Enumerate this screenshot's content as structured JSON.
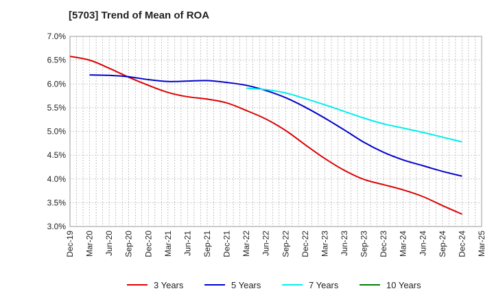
{
  "title": "[5703]  Trend of Mean of ROA",
  "chart_data": {
    "type": "line",
    "title": "[5703]  Trend of Mean of ROA",
    "xlabel": "",
    "ylabel": "",
    "ylim": [
      3.0,
      7.0
    ],
    "y_ticks": [
      3.0,
      3.5,
      4.0,
      4.5,
      5.0,
      5.5,
      6.0,
      6.5,
      7.0
    ],
    "y_tick_labels": [
      "3.0%",
      "3.5%",
      "4.0%",
      "4.5%",
      "5.0%",
      "5.5%",
      "6.0%",
      "6.5%",
      "7.0%"
    ],
    "categories": [
      "Dec-19",
      "Mar-20",
      "Jun-20",
      "Sep-20",
      "Dec-20",
      "Mar-21",
      "Jun-21",
      "Sep-21",
      "Dec-21",
      "Mar-22",
      "Jun-22",
      "Sep-22",
      "Dec-22",
      "Mar-23",
      "Jun-23",
      "Sep-23",
      "Dec-23",
      "Mar-24",
      "Jun-24",
      "Sep-24",
      "Dec-24",
      "Mar-25"
    ],
    "grid": true,
    "legend_position": "bottom",
    "series": [
      {
        "name": "3 Years",
        "color": "#dd0000",
        "values": [
          6.58,
          6.5,
          6.33,
          6.14,
          5.97,
          5.82,
          5.73,
          5.68,
          5.6,
          5.44,
          5.26,
          5.02,
          4.72,
          4.43,
          4.18,
          3.99,
          3.88,
          3.77,
          3.63,
          3.44,
          3.26,
          null
        ]
      },
      {
        "name": "5 Years",
        "color": "#0000cc",
        "values": [
          null,
          6.19,
          6.18,
          6.15,
          6.09,
          6.05,
          6.06,
          6.07,
          6.03,
          5.97,
          5.86,
          5.71,
          5.51,
          5.28,
          5.03,
          4.77,
          4.56,
          4.4,
          4.28,
          4.16,
          4.06,
          null
        ]
      },
      {
        "name": "7 Years",
        "color": "#00eeee",
        "values": [
          null,
          null,
          null,
          null,
          null,
          null,
          null,
          null,
          null,
          5.91,
          5.88,
          5.81,
          5.69,
          5.56,
          5.42,
          5.28,
          5.16,
          5.07,
          4.98,
          4.88,
          4.78,
          null
        ]
      },
      {
        "name": "10 Years",
        "color": "#008000",
        "values": [
          null,
          null,
          null,
          null,
          null,
          null,
          null,
          null,
          null,
          null,
          null,
          null,
          null,
          null,
          null,
          null,
          null,
          null,
          null,
          null,
          null,
          null
        ]
      }
    ]
  }
}
